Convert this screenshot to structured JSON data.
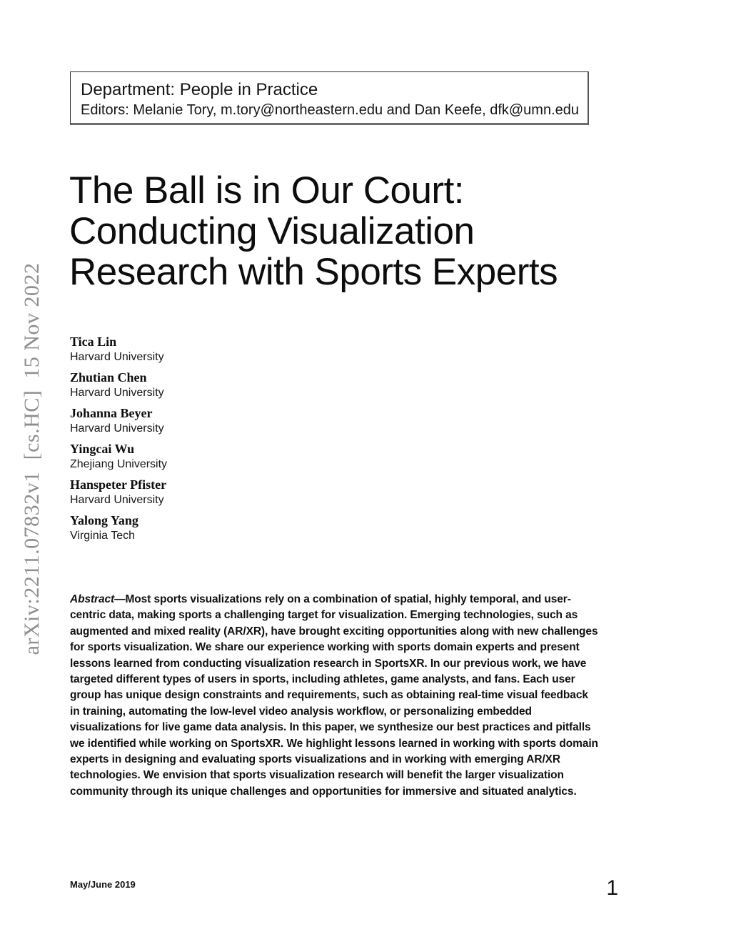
{
  "header_box": {
    "department": "Department: People in Practice",
    "editors": "Editors: Melanie Tory, m.tory@northeastern.edu and Dan Keefe, dfk@umn.edu"
  },
  "arxiv_stamp": "arXiv:2211.07832v1  [cs.HC]  15 Nov 2022",
  "title": {
    "lines": [
      "The Ball is in Our Court:",
      "Conducting Visualization",
      "Research with Sports Experts"
    ]
  },
  "authors": [
    {
      "name": "Tica Lin",
      "affiliation": "Harvard University"
    },
    {
      "name": "Zhutian Chen",
      "affiliation": "Harvard University"
    },
    {
      "name": "Johanna Beyer",
      "affiliation": "Harvard University"
    },
    {
      "name": "Yingcai Wu",
      "affiliation": "Zhejiang University"
    },
    {
      "name": "Hanspeter Pfister",
      "affiliation": "Harvard University"
    },
    {
      "name": "Yalong Yang",
      "affiliation": "Virginia Tech"
    }
  ],
  "abstract": {
    "label": "Abstract",
    "text": "—Most sports visualizations rely on a combination of spatial, highly temporal, and user-centric data, making sports a challenging target for visualization. Emerging technologies, such as augmented and mixed reality (AR/XR), have brought exciting opportunities along with new challenges for sports visualization. We share our experience working with sports domain experts and present lessons learned from conducting visualization research in SportsXR. In our previous work, we have targeted different types of users in sports, including athletes, game analysts, and fans. Each user group has unique design constraints and requirements, such as obtaining real-time visual feedback in training, automating the low-level video analysis workflow, or personalizing embedded visualizations for live game data analysis. In this paper, we synthesize our best practices and pitfalls we identified while working on SportsXR. We highlight lessons learned in working with sports domain experts in designing and evaluating sports visualizations and in working with emerging AR/XR technologies. We envision that sports visualization research will benefit the larger visualization community through its unique challenges and opportunities for immersive and situated analytics."
  },
  "footer": {
    "issue": "May/June 2019",
    "page_number": "1"
  },
  "colors": {
    "text": "#111111",
    "stamp_gray": "#8e8e8e",
    "box_border": "#2e2e2e"
  }
}
